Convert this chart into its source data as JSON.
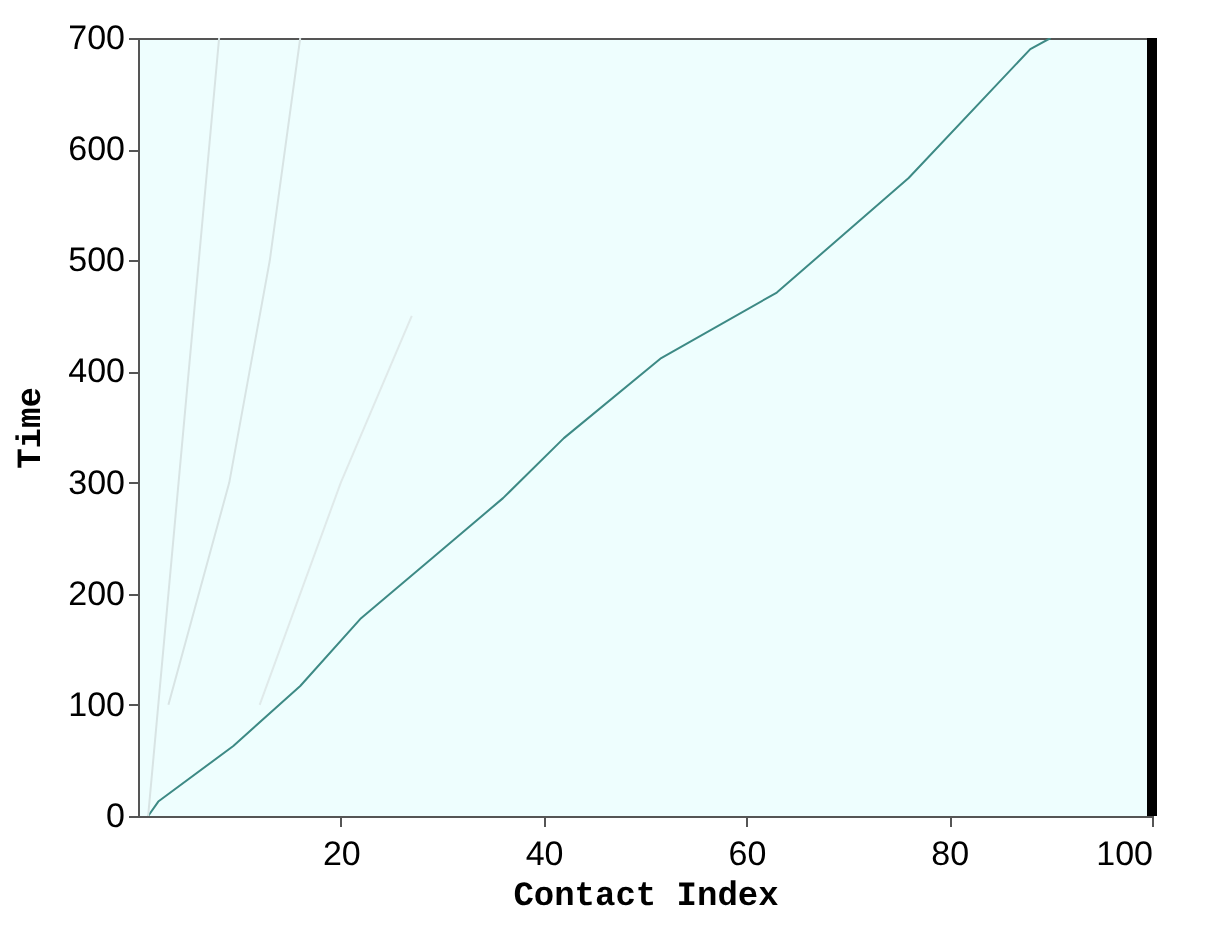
{
  "chart_data": {
    "type": "line",
    "xlabel": "Contact Index",
    "ylabel": "Time",
    "xlim": [
      0,
      100
    ],
    "ylim": [
      0,
      700
    ],
    "xticks": [
      20,
      40,
      60,
      80,
      100
    ],
    "yticks": [
      0,
      100,
      200,
      300,
      400,
      500,
      600,
      700
    ],
    "series": [
      {
        "color": "#3d8a85",
        "x": [
          1,
          2,
          9.4,
          16,
          22,
          29,
          36,
          42,
          51.6,
          63,
          76,
          88,
          90
        ],
        "values": [
          0,
          13,
          63,
          117,
          178,
          232,
          286,
          340,
          412,
          471,
          574,
          690,
          700
        ]
      },
      {
        "color": "#d8e4e4",
        "x": [
          1,
          4,
          6,
          8
        ],
        "values": [
          0,
          300,
          500,
          700
        ]
      },
      {
        "color": "#d8e4e4",
        "x": [
          3,
          9,
          13,
          16
        ],
        "values": [
          100,
          300,
          500,
          700
        ]
      },
      {
        "color": "#e0eaea",
        "x": [
          12,
          20,
          27
        ],
        "values": [
          100,
          300,
          450
        ]
      }
    ],
    "ref_lines": [
      {
        "axis": "x",
        "value": 100,
        "color": "#000000"
      }
    ],
    "grid": false,
    "legend": false
  }
}
